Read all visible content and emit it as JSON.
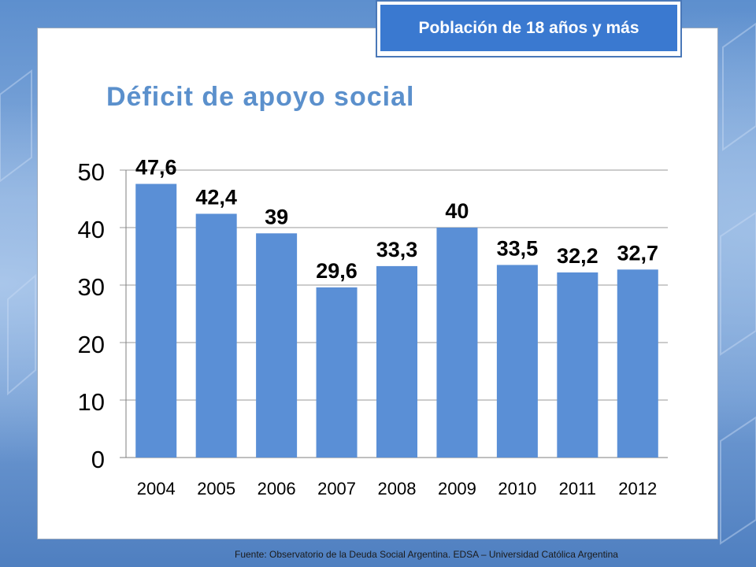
{
  "badge": {
    "label": "Población de 18 años y más"
  },
  "source": {
    "text": "Fuente:   Observatorio de  la Deuda Social Argentina. EDSA  – Universidad Católica Argentina"
  },
  "colors": {
    "bar": "#5a8fd6",
    "title": "#5b90cc",
    "badge": "#3a79d0"
  },
  "chart_data": {
    "type": "bar",
    "title": "Déficit de apoyo social",
    "categories": [
      "2004",
      "2005",
      "2006",
      "2007",
      "2008",
      "2009",
      "2010",
      "2011",
      "2012"
    ],
    "values": [
      47.6,
      42.4,
      39,
      29.6,
      33.3,
      40,
      33.5,
      32.2,
      32.7
    ],
    "value_labels": [
      "47,6",
      "42,4",
      "39",
      "29,6",
      "33,3",
      "40",
      "33,5",
      "32,2",
      "32,7"
    ],
    "ylim": [
      0,
      50
    ],
    "yticks": [
      0,
      10,
      20,
      30,
      40,
      50
    ],
    "grid": true,
    "xlabel": "",
    "ylabel": ""
  }
}
